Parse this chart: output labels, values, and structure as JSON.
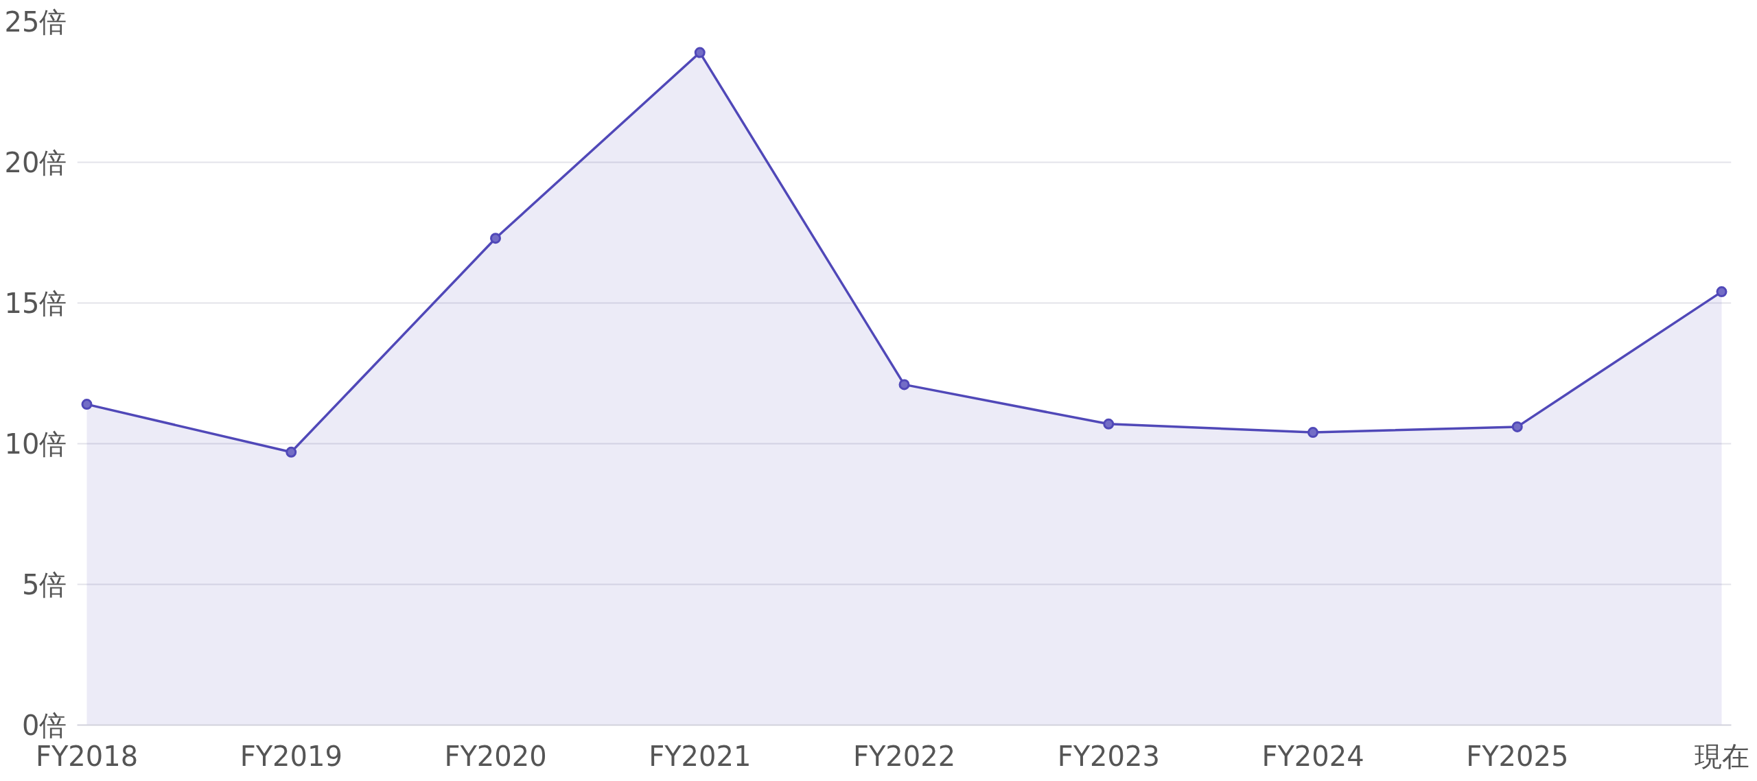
{
  "chart_data": {
    "type": "area",
    "categories": [
      "FY2018",
      "FY2019",
      "FY2020",
      "FY2021",
      "FY2022",
      "FY2023",
      "FY2024",
      "FY2025",
      "現在"
    ],
    "series": [
      {
        "color": "#5048b8",
        "values": [
          11.4,
          9.7,
          17.3,
          23.9,
          12.1,
          10.7,
          10.4,
          10.6,
          15.4
        ]
      }
    ],
    "ylim": [
      0,
      25
    ],
    "yticks": [
      {
        "value": 0,
        "label": "0倍"
      },
      {
        "value": 5,
        "label": "5倍"
      },
      {
        "value": 10,
        "label": "10倍"
      },
      {
        "value": 15,
        "label": "15倍"
      },
      {
        "value": 20,
        "label": "20倍"
      },
      {
        "value": 25,
        "label": "25倍"
      }
    ],
    "grid": "y",
    "marker": "circle",
    "line_style": "solid"
  }
}
